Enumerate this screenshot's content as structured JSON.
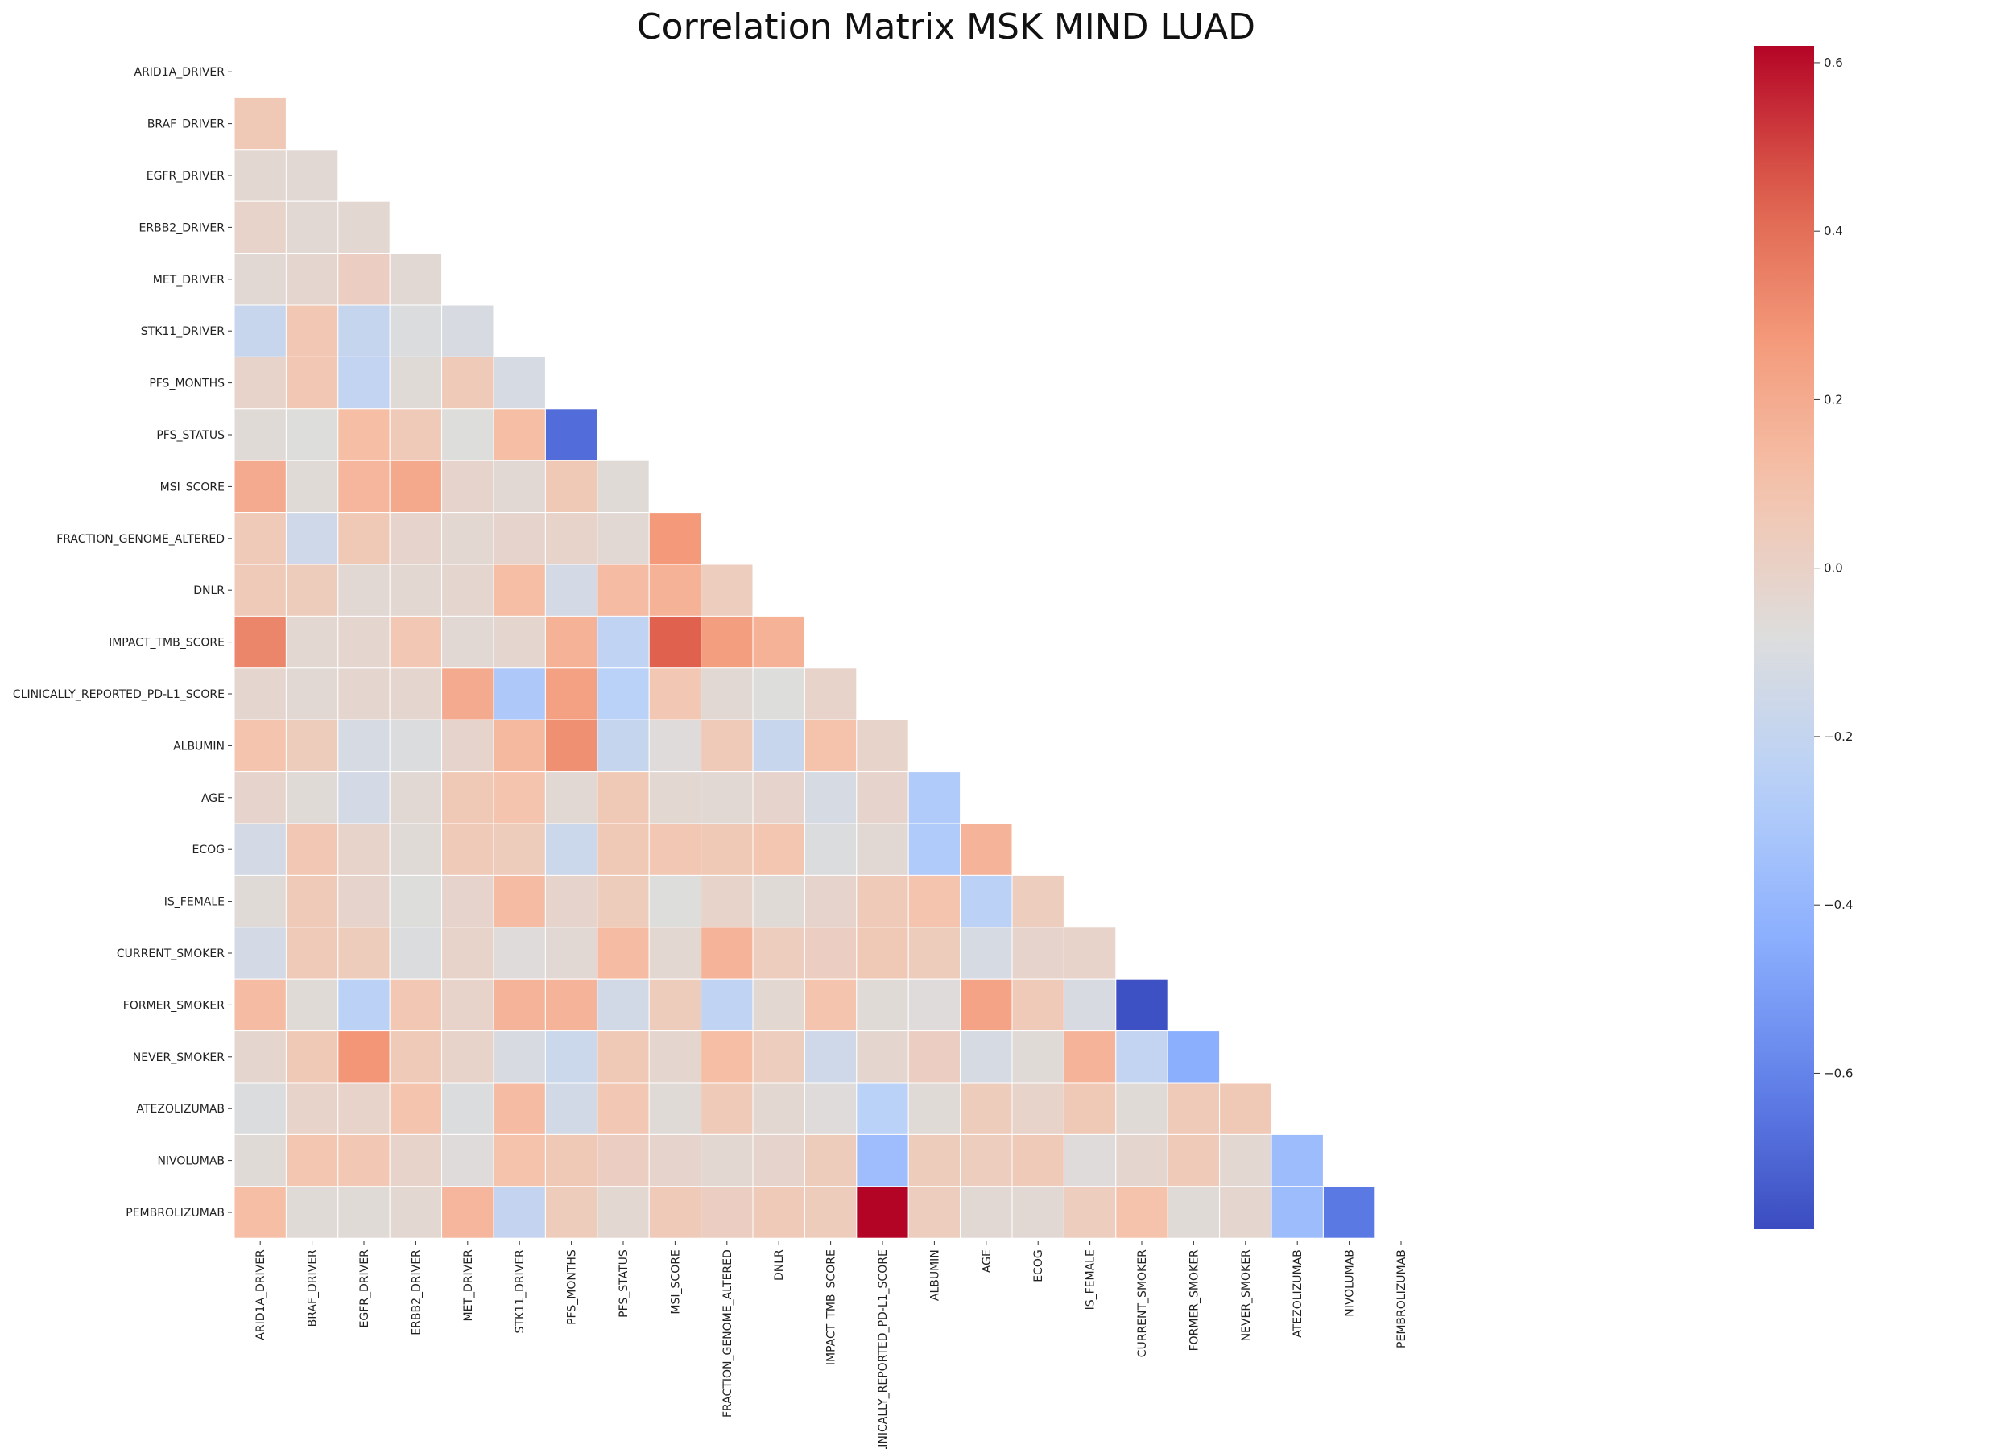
{
  "chart_data": {
    "type": "heatmap",
    "title": "Correlation Matrix MSK MIND LUAD",
    "labels": [
      "ARID1A_DRIVER",
      "BRAF_DRIVER",
      "EGFR_DRIVER",
      "ERBB2_DRIVER",
      "MET_DRIVER",
      "STK11_DRIVER",
      "PFS_MONTHS",
      "PFS_STATUS",
      "MSI_SCORE",
      "FRACTION_GENOME_ALTERED",
      "DNLR",
      "IMPACT_TMB_SCORE",
      "CLINICALLY_REPORTED_PD-L1_SCORE",
      "ALBUMIN",
      "AGE",
      "ECOG",
      "IS_FEMALE",
      "CURRENT_SMOKER",
      "FORMER_SMOKER",
      "NEVER_SMOKER",
      "ATEZOLIZUMAB",
      "NIVOLUMAB",
      "PEMBROLIZUMAB"
    ],
    "mask": "upper-triangle-and-diagonal",
    "values": [
      [],
      [
        0.06
      ],
      [
        -0.04,
        -0.05
      ],
      [
        -0.01,
        -0.05,
        -0.04
      ],
      [
        -0.05,
        -0.03,
        0.02,
        -0.05
      ],
      [
        -0.18,
        0.07,
        -0.19,
        -0.09,
        -0.11
      ],
      [
        -0.01,
        0.07,
        -0.21,
        -0.06,
        0.05,
        -0.12
      ],
      [
        -0.06,
        -0.08,
        0.12,
        0.05,
        -0.08,
        0.12,
        -0.68
      ],
      [
        0.2,
        -0.06,
        0.15,
        0.21,
        -0.02,
        -0.05,
        0.06,
        -0.06
      ],
      [
        0.05,
        -0.15,
        0.06,
        -0.02,
        -0.04,
        -0.02,
        -0.01,
        -0.05,
        0.27
      ],
      [
        0.05,
        0.04,
        -0.05,
        -0.04,
        -0.03,
        0.12,
        -0.13,
        0.13,
        0.17,
        0.03
      ],
      [
        0.33,
        -0.04,
        -0.03,
        0.07,
        -0.05,
        -0.03,
        0.17,
        -0.22,
        0.44,
        0.25,
        0.17
      ],
      [
        -0.03,
        -0.05,
        -0.03,
        -0.03,
        0.2,
        -0.3,
        0.24,
        -0.25,
        0.07,
        -0.05,
        -0.08,
        -0.01
      ],
      [
        0.09,
        0.04,
        -0.12,
        -0.09,
        -0.02,
        0.14,
        0.3,
        -0.19,
        -0.07,
        0.05,
        -0.18,
        0.1,
        -0.01
      ],
      [
        -0.02,
        -0.06,
        -0.13,
        -0.05,
        0.06,
        0.09,
        -0.05,
        0.06,
        -0.04,
        -0.05,
        -0.02,
        -0.12,
        -0.02,
        -0.29
      ],
      [
        -0.13,
        0.07,
        -0.01,
        -0.06,
        0.05,
        0.04,
        -0.17,
        0.06,
        0.07,
        0.06,
        0.08,
        -0.09,
        -0.05,
        -0.29,
        0.16
      ],
      [
        -0.06,
        0.05,
        -0.02,
        -0.08,
        -0.02,
        0.13,
        -0.02,
        0.04,
        -0.08,
        -0.01,
        -0.06,
        -0.02,
        0.05,
        0.09,
        -0.24,
        0.03
      ],
      [
        -0.13,
        0.05,
        0.04,
        -0.09,
        -0.01,
        -0.07,
        -0.05,
        0.13,
        -0.04,
        0.16,
        0.03,
        0.02,
        0.06,
        0.04,
        -0.12,
        -0.02,
        -0.01
      ],
      [
        0.13,
        -0.06,
        -0.24,
        0.07,
        -0.01,
        0.16,
        0.16,
        -0.14,
        0.04,
        -0.22,
        -0.04,
        0.09,
        -0.06,
        -0.07,
        0.23,
        0.05,
        -0.11,
        -0.77
      ],
      [
        -0.03,
        0.06,
        0.28,
        0.05,
        -0.01,
        -0.11,
        -0.17,
        0.06,
        -0.03,
        0.12,
        0.03,
        -0.15,
        -0.03,
        0.02,
        -0.12,
        -0.06,
        0.16,
        -0.21,
        -0.44
      ],
      [
        -0.09,
        -0.01,
        -0.01,
        0.09,
        -0.09,
        0.13,
        -0.14,
        0.07,
        -0.06,
        0.05,
        -0.04,
        -0.07,
        -0.25,
        -0.06,
        0.04,
        -0.01,
        0.06,
        -0.06,
        0.05,
        0.06
      ],
      [
        -0.06,
        0.08,
        0.07,
        -0.01,
        -0.07,
        0.1,
        0.06,
        0.02,
        -0.02,
        -0.04,
        -0.02,
        0.04,
        -0.36,
        0.04,
        0.03,
        0.05,
        -0.07,
        -0.03,
        0.05,
        -0.04,
        -0.37
      ],
      [
        0.12,
        -0.06,
        -0.06,
        -0.04,
        0.15,
        -0.2,
        0.04,
        -0.04,
        0.05,
        0.02,
        0.05,
        0.04,
        0.62,
        0.03,
        -0.05,
        -0.05,
        0.03,
        0.1,
        -0.06,
        -0.03,
        -0.37,
        -0.64
      ]
    ],
    "colorbar": {
      "min": -0.785,
      "max": 0.62,
      "ticks": [
        0.6,
        0.4,
        0.2,
        0.0,
        -0.2,
        -0.4,
        -0.6
      ],
      "tick_labels": [
        "0.6",
        "0.4",
        "0.2",
        "0.0",
        "−0.2",
        "−0.4",
        "−0.6"
      ]
    },
    "colormap": "coolwarm"
  }
}
